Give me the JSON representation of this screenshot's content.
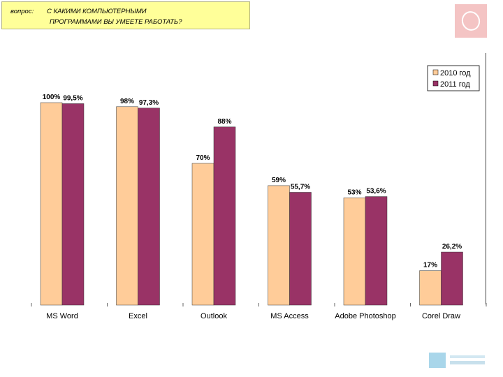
{
  "question": {
    "prefix": "вопрос:",
    "line1": "С КАКИМИ КОМПЬЮТЕРНЫМИ",
    "line2": "ПРОГРАММАМИ ВЫ УМЕЕТЕ РАБОТАТЬ?"
  },
  "chart_data": {
    "type": "bar",
    "categories": [
      "MS Word",
      "Excel",
      "Outlook",
      "MS Access",
      "Adobe Photoshop",
      "Corel Draw"
    ],
    "series": [
      {
        "name": "2010 год",
        "values": [
          100,
          98,
          70,
          59,
          53,
          17
        ],
        "labels": [
          "100%",
          "98%",
          "70%",
          "59%",
          "53%",
          "17%"
        ],
        "color": "#ffcc99"
      },
      {
        "name": "2011 год",
        "values": [
          99.5,
          97.3,
          88,
          55.7,
          53.6,
          26.2
        ],
        "labels": [
          "99,5%",
          "97,3%",
          "88%",
          "55,7%",
          "53,6%",
          "26,2%"
        ],
        "color": "#993366"
      }
    ],
    "ylim": [
      0,
      100
    ],
    "grid": false,
    "legend": "top-right"
  }
}
